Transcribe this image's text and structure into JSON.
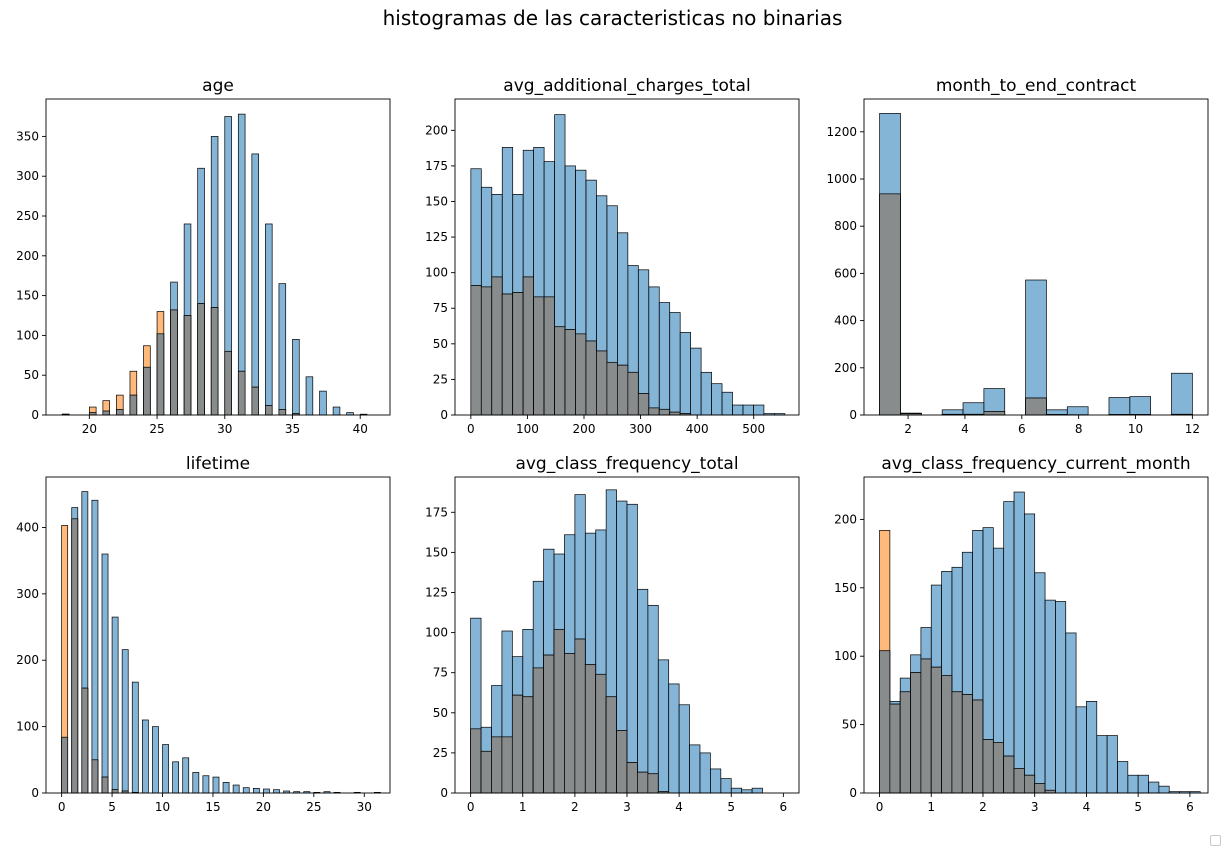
{
  "figure": {
    "title": "histogramas de las caracteristicas no binarias"
  },
  "colors": {
    "series_a": "#1f77b4",
    "series_b": "#ff7f0e",
    "overlap": "#888c8c"
  },
  "chart_data": [
    {
      "type": "bar",
      "title": "age",
      "xlim": [
        16.8,
        42.2
      ],
      "ylim": [
        0,
        397
      ],
      "xticks": [
        20,
        25,
        30,
        35,
        40
      ],
      "yticks": [
        0,
        50,
        100,
        150,
        200,
        250,
        300,
        350
      ],
      "bin_width": 0.5,
      "series": [
        {
          "x": [
            18,
            19,
            20,
            21,
            22,
            23,
            24,
            25,
            26,
            27,
            28,
            29,
            30,
            31,
            32,
            33,
            34,
            35,
            36,
            37,
            38,
            39,
            40,
            41
          ],
          "values": [
            1,
            0,
            3,
            5,
            7,
            25,
            60,
            102,
            167,
            240,
            310,
            350,
            375,
            378,
            328,
            240,
            165,
            95,
            48,
            30,
            10,
            3,
            1,
            0
          ]
        },
        {
          "x": [
            18,
            19,
            20,
            21,
            22,
            23,
            24,
            25,
            26,
            27,
            28,
            29,
            30,
            31,
            32,
            33,
            34,
            35,
            36,
            37,
            38,
            39,
            40,
            41
          ],
          "values": [
            1,
            0,
            10,
            18,
            25,
            55,
            87,
            130,
            132,
            125,
            140,
            135,
            80,
            55,
            35,
            12,
            7,
            2,
            0,
            0,
            0,
            0,
            0,
            0
          ]
        }
      ]
    },
    {
      "type": "bar",
      "title": "avg_additional_charges_total",
      "xlim": [
        -28,
        580
      ],
      "ylim": [
        0,
        222
      ],
      "xticks": [
        0,
        100,
        200,
        300,
        400,
        500
      ],
      "yticks": [
        0,
        25,
        50,
        75,
        100,
        125,
        150,
        175,
        200
      ],
      "bin_width": 18.5,
      "series": [
        {
          "x": [
            0,
            18.5,
            37,
            55.5,
            74,
            92.5,
            111,
            129.5,
            148,
            166.5,
            185,
            203.5,
            222,
            240.5,
            259,
            277.5,
            296,
            314.5,
            333,
            351.5,
            370,
            388.5,
            407,
            425.5,
            444,
            462.5,
            481,
            499.5,
            518,
            536.5
          ],
          "values": [
            173,
            160,
            155,
            188,
            155,
            186,
            188,
            178,
            211,
            175,
            172,
            165,
            154,
            147,
            128,
            105,
            102,
            90,
            79,
            72,
            58,
            47,
            30,
            22,
            16,
            7,
            7,
            7,
            1,
            1
          ]
        },
        {
          "x": [
            0,
            18.5,
            37,
            55.5,
            74,
            92.5,
            111,
            129.5,
            148,
            166.5,
            185,
            203.5,
            222,
            240.5,
            259,
            277.5,
            296,
            314.5,
            333,
            351.5,
            370,
            388.5,
            407,
            425.5,
            444,
            462.5,
            481,
            499.5,
            518,
            536.5
          ],
          "values": [
            91,
            90,
            97,
            85,
            86,
            97,
            83,
            83,
            62,
            60,
            57,
            52,
            45,
            37,
            35,
            30,
            15,
            5,
            4,
            2,
            1,
            0,
            0,
            0,
            0,
            0,
            0,
            0,
            0,
            0
          ]
        }
      ]
    },
    {
      "type": "bar",
      "title": "month_to_end_contract",
      "xlim": [
        0.45,
        12.55
      ],
      "ylim": [
        0,
        1339
      ],
      "xticks": [
        2,
        4,
        6,
        8,
        10,
        12
      ],
      "yticks": [
        0,
        200,
        400,
        600,
        800,
        1000,
        1200
      ],
      "bin_width": 0.7333,
      "series": [
        {
          "x": [
            1,
            1.7333,
            2.4667,
            3.2,
            3.9333,
            4.6667,
            5.4,
            6.1333,
            6.8667,
            7.6,
            8.3333,
            9.0667,
            9.8,
            10.5333,
            11.2667
          ],
          "values": [
            1278,
            8,
            0,
            22,
            52,
            112,
            0,
            572,
            22,
            35,
            0,
            74,
            78,
            0,
            177
          ]
        },
        {
          "x": [
            1,
            1.7333,
            2.4667,
            3.2,
            3.9333,
            4.6667,
            5.4,
            6.1333,
            6.8667,
            7.6,
            8.3333,
            9.0667,
            9.8,
            10.5333,
            11.2667
          ],
          "values": [
            937,
            6,
            0,
            3,
            3,
            15,
            0,
            72,
            2,
            1,
            0,
            2,
            2,
            0,
            3
          ]
        }
      ]
    },
    {
      "type": "bar",
      "title": "lifetime",
      "xlim": [
        -1.55,
        32.55
      ],
      "ylim": [
        0,
        476
      ],
      "xticks": [
        0,
        5,
        10,
        15,
        20,
        25,
        30
      ],
      "yticks": [
        0,
        100,
        200,
        300,
        400
      ],
      "bin_width": 0.6,
      "series": [
        {
          "x": [
            0,
            1,
            2,
            3,
            4,
            5,
            6,
            7,
            8,
            9,
            10,
            11,
            12,
            13,
            14,
            15,
            16,
            17,
            18,
            19,
            20,
            21,
            22,
            23,
            24,
            25,
            26,
            27,
            29,
            31
          ],
          "values": [
            84,
            430,
            454,
            441,
            360,
            265,
            216,
            167,
            110,
            100,
            73,
            47,
            53,
            31,
            26,
            24,
            16,
            12,
            8,
            7,
            6,
            5,
            3,
            2,
            2,
            1,
            2,
            1,
            1,
            1
          ]
        },
        {
          "x": [
            0,
            1,
            2,
            3,
            4,
            5,
            6,
            7,
            8,
            9,
            10,
            11,
            12,
            13,
            14,
            15,
            16,
            17,
            18,
            19,
            20,
            21,
            22,
            23,
            24,
            25,
            26,
            27,
            29,
            31
          ],
          "values": [
            403,
            413,
            158,
            50,
            24,
            5,
            3,
            1,
            0,
            0,
            0,
            0,
            0,
            0,
            0,
            0,
            0,
            0,
            0,
            0,
            0,
            0,
            0,
            0,
            0,
            0,
            0,
            0,
            0,
            0
          ]
        }
      ]
    },
    {
      "type": "bar",
      "title": "avg_class_frequency_total",
      "xlim": [
        -0.3,
        6.3
      ],
      "ylim": [
        0,
        197
      ],
      "xticks": [
        0,
        1,
        2,
        3,
        4,
        5,
        6
      ],
      "yticks": [
        0,
        25,
        50,
        75,
        100,
        125,
        150,
        175
      ],
      "bin_width": 0.2,
      "series": [
        {
          "x": [
            0,
            0.2,
            0.4,
            0.6,
            0.8,
            1.0,
            1.2,
            1.4,
            1.6,
            1.8,
            2.0,
            2.2,
            2.4,
            2.6,
            2.8,
            3.0,
            3.2,
            3.4,
            3.6,
            3.8,
            4.0,
            4.2,
            4.4,
            4.6,
            4.8,
            5.0,
            5.2,
            5.4,
            5.6,
            5.8
          ],
          "values": [
            109,
            41,
            67,
            101,
            85,
            102,
            132,
            152,
            149,
            161,
            186,
            162,
            164,
            189,
            182,
            180,
            127,
            117,
            83,
            68,
            55,
            30,
            25,
            15,
            9,
            3,
            2,
            3,
            0,
            0
          ]
        },
        {
          "x": [
            0,
            0.2,
            0.4,
            0.6,
            0.8,
            1.0,
            1.2,
            1.4,
            1.6,
            1.8,
            2.0,
            2.2,
            2.4,
            2.6,
            2.8,
            3.0,
            3.2,
            3.4,
            3.6,
            3.8,
            4.0,
            4.2,
            4.4,
            4.6,
            4.8,
            5.0,
            5.2,
            5.4,
            5.6,
            5.8
          ],
          "values": [
            40,
            26,
            35,
            35,
            61,
            60,
            78,
            86,
            102,
            87,
            96,
            80,
            74,
            60,
            39,
            19,
            13,
            12,
            1,
            0,
            0,
            0,
            0,
            0,
            0,
            0,
            0,
            0,
            0,
            0
          ]
        }
      ]
    },
    {
      "type": "bar",
      "title": "avg_class_frequency_current_month",
      "xlim": [
        -0.3,
        6.35
      ],
      "ylim": [
        0,
        231
      ],
      "xticks": [
        0,
        1,
        2,
        3,
        4,
        5,
        6
      ],
      "yticks": [
        0,
        50,
        100,
        150,
        200
      ],
      "bin_width": 0.2,
      "series": [
        {
          "x": [
            0,
            0.2,
            0.4,
            0.6,
            0.8,
            1.0,
            1.2,
            1.4,
            1.6,
            1.8,
            2.0,
            2.2,
            2.4,
            2.6,
            2.8,
            3.0,
            3.2,
            3.4,
            3.6,
            3.8,
            4.0,
            4.2,
            4.4,
            4.6,
            4.8,
            5.0,
            5.2,
            5.4,
            5.6,
            5.8,
            6.0
          ],
          "values": [
            104,
            67,
            84,
            101,
            121,
            152,
            162,
            165,
            176,
            192,
            194,
            179,
            213,
            220,
            204,
            161,
            141,
            140,
            117,
            63,
            67,
            42,
            42,
            23,
            13,
            13,
            8,
            5,
            1,
            1,
            1
          ]
        },
        {
          "x": [
            0,
            0.2,
            0.4,
            0.6,
            0.8,
            1.0,
            1.2,
            1.4,
            1.6,
            1.8,
            2.0,
            2.2,
            2.4,
            2.6,
            2.8,
            3.0,
            3.2,
            3.4,
            3.6,
            3.8,
            4.0,
            4.2,
            4.4,
            4.6,
            4.8,
            5.0,
            5.2,
            5.4,
            5.6,
            5.8,
            6.0
          ],
          "values": [
            192,
            65,
            74,
            88,
            98,
            92,
            86,
            74,
            72,
            68,
            39,
            37,
            27,
            18,
            13,
            7,
            2,
            0,
            0,
            0,
            0,
            0,
            0,
            0,
            0,
            0,
            0,
            0,
            0,
            0,
            0
          ]
        }
      ]
    }
  ]
}
